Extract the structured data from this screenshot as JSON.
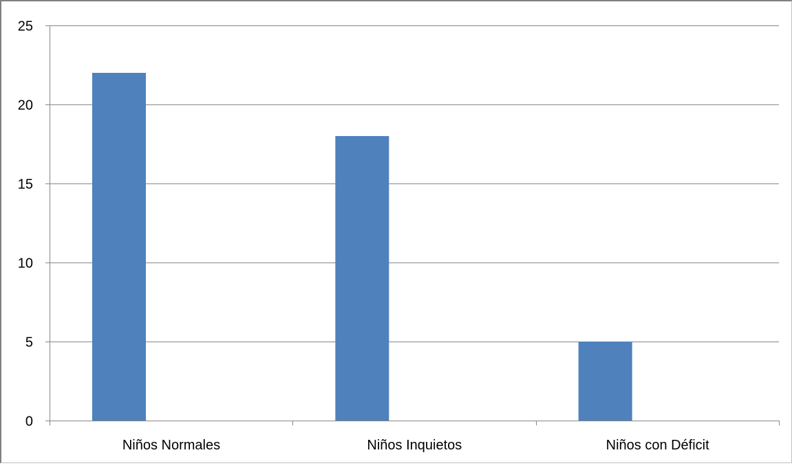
{
  "chart_data": {
    "type": "bar",
    "title": "",
    "xlabel": "",
    "ylabel": "",
    "categories": [
      "Niños Normales",
      "Niños Inquietos",
      "Niños con Déficit"
    ],
    "values": [
      22,
      18,
      5
    ],
    "ylim": [
      0,
      25
    ],
    "yticks": [
      0,
      5,
      10,
      15,
      20,
      25
    ],
    "ytick_labels": [
      "0",
      "5",
      "10",
      "15",
      "20",
      "25"
    ],
    "grid": true,
    "legend": "none",
    "colors": {
      "bar": "#4f81bd",
      "grid": "#868686",
      "axis": "#868686"
    }
  }
}
